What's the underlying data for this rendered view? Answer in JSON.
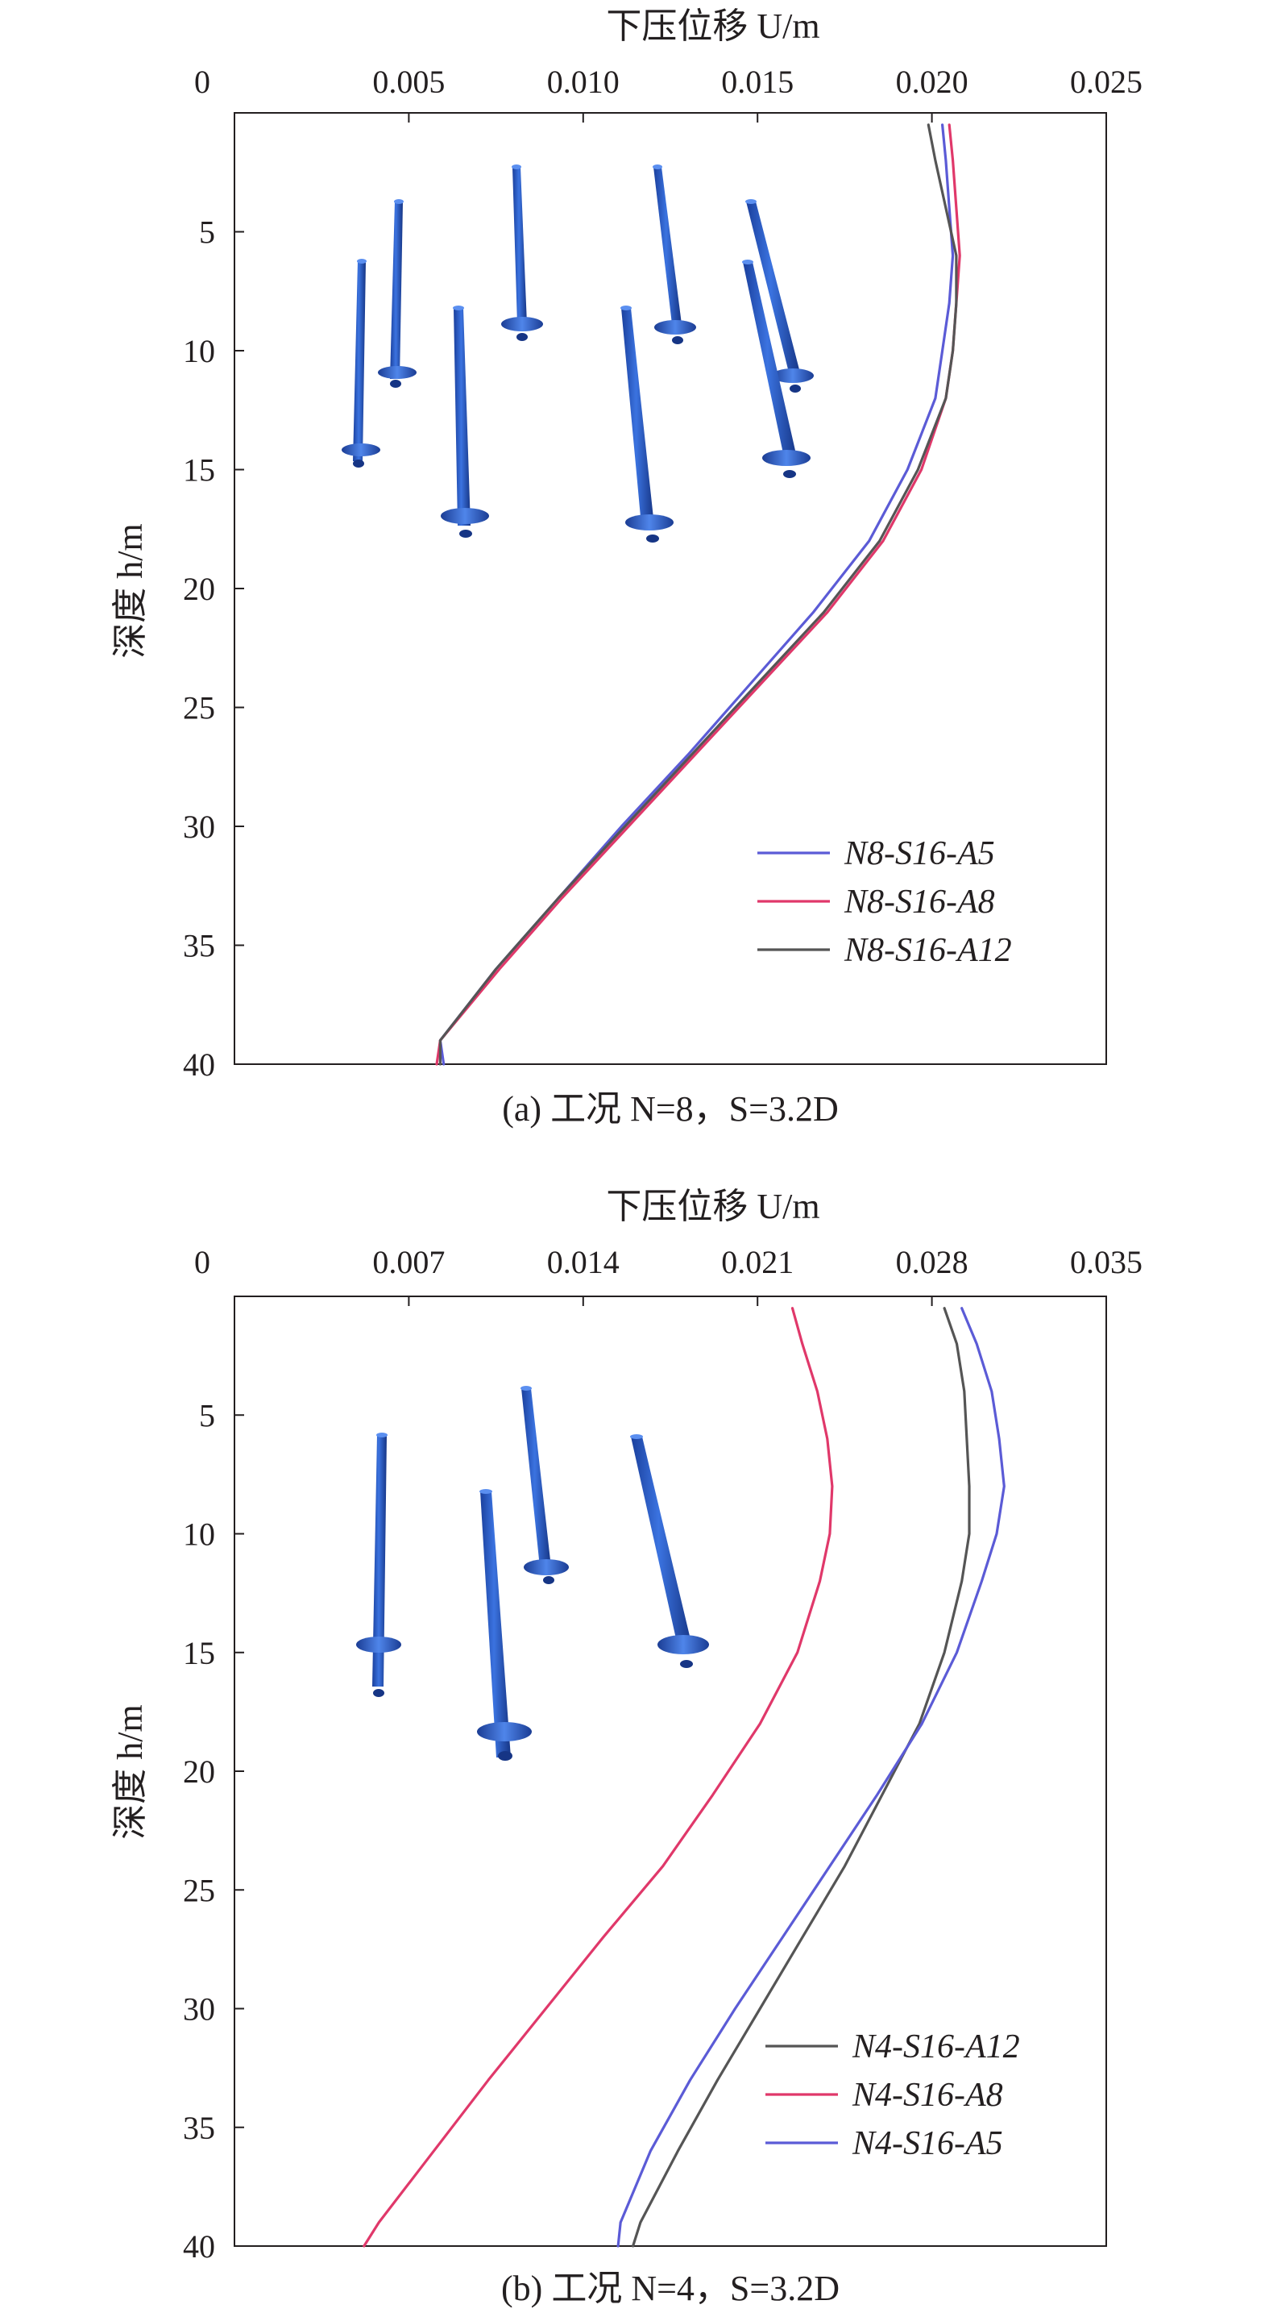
{
  "chart_data": [
    {
      "type": "line",
      "caption_text": "(a) 工况 N=8，S=3.2D",
      "x_axis": {
        "label": "下压位移 U/m",
        "position": "top",
        "range": [
          0,
          0.025
        ],
        "ticks": [
          0,
          0.005,
          0.01,
          0.015,
          0.02,
          0.025
        ],
        "tick_labels": [
          "0",
          "0.005",
          "0.010",
          "0.015",
          "0.020",
          "0.025"
        ]
      },
      "y_axis": {
        "label": "深度 h/m",
        "inverted": true,
        "range": [
          0,
          40
        ],
        "ticks": [
          5,
          10,
          15,
          20,
          25,
          30,
          35,
          40
        ],
        "tick_labels": [
          "5",
          "10",
          "15",
          "20",
          "25",
          "30",
          "35",
          "40"
        ]
      },
      "legend_position": "lower-right",
      "inset": "pile-group-3d-view",
      "series": [
        {
          "name": "N8-S16-A5",
          "color": "#5b5bd6",
          "points": [
            [
              0.0203,
              0.5
            ],
            [
              0.0204,
              2
            ],
            [
              0.0205,
              4
            ],
            [
              0.0206,
              6
            ],
            [
              0.0205,
              8
            ],
            [
              0.0203,
              10
            ],
            [
              0.0201,
              12
            ],
            [
              0.0193,
              15
            ],
            [
              0.0182,
              18
            ],
            [
              0.0166,
              21
            ],
            [
              0.0148,
              24
            ],
            [
              0.013,
              27
            ],
            [
              0.0111,
              30
            ],
            [
              0.0093,
              33
            ],
            [
              0.0075,
              36
            ],
            [
              0.0059,
              39
            ],
            [
              0.006,
              40
            ]
          ]
        },
        {
          "name": "N8-S16-A8",
          "color": "#e0386a",
          "points": [
            [
              0.0205,
              0.5
            ],
            [
              0.0206,
              2
            ],
            [
              0.0207,
              4
            ],
            [
              0.0208,
              6
            ],
            [
              0.0207,
              8
            ],
            [
              0.0206,
              10
            ],
            [
              0.0204,
              12
            ],
            [
              0.0197,
              15
            ],
            [
              0.0186,
              18
            ],
            [
              0.017,
              21
            ],
            [
              0.0151,
              24
            ],
            [
              0.0132,
              27
            ],
            [
              0.0113,
              30
            ],
            [
              0.0094,
              33
            ],
            [
              0.0076,
              36
            ],
            [
              0.0059,
              39
            ],
            [
              0.0058,
              40
            ]
          ]
        },
        {
          "name": "N8-S16-A12",
          "color": "#555555",
          "points": [
            [
              0.0199,
              0.5
            ],
            [
              0.0201,
              2
            ],
            [
              0.0204,
              4
            ],
            [
              0.0207,
              6
            ],
            [
              0.0207,
              8
            ],
            [
              0.0206,
              10
            ],
            [
              0.0204,
              12
            ],
            [
              0.0196,
              15
            ],
            [
              0.0185,
              18
            ],
            [
              0.0169,
              21
            ],
            [
              0.015,
              24
            ],
            [
              0.0131,
              27
            ],
            [
              0.0112,
              30
            ],
            [
              0.0093,
              33
            ],
            [
              0.0075,
              36
            ],
            [
              0.0059,
              39
            ],
            [
              0.0059,
              40
            ]
          ]
        }
      ]
    },
    {
      "type": "line",
      "caption_text": "(b) 工况 N=4，S=3.2D",
      "x_axis": {
        "label": "下压位移 U/m",
        "position": "top",
        "range": [
          0,
          0.035
        ],
        "ticks": [
          0,
          0.007,
          0.014,
          0.021,
          0.028,
          0.035
        ],
        "tick_labels": [
          "0",
          "0.007",
          "0.014",
          "0.021",
          "0.028",
          "0.035"
        ]
      },
      "y_axis": {
        "label": "深度 h/m",
        "inverted": true,
        "range": [
          0,
          40
        ],
        "ticks": [
          5,
          10,
          15,
          20,
          25,
          30,
          35,
          40
        ],
        "tick_labels": [
          "5",
          "10",
          "15",
          "20",
          "25",
          "30",
          "35",
          "40"
        ]
      },
      "legend_position": "lower-right",
      "inset": "pile-group-3d-view",
      "series": [
        {
          "name": "N4-S16-A12",
          "color": "#555555",
          "points": [
            [
              0.0285,
              0.5
            ],
            [
              0.029,
              2
            ],
            [
              0.0293,
              4
            ],
            [
              0.0294,
              6
            ],
            [
              0.0295,
              8
            ],
            [
              0.0295,
              10
            ],
            [
              0.0292,
              12
            ],
            [
              0.0285,
              15
            ],
            [
              0.0275,
              18
            ],
            [
              0.026,
              21
            ],
            [
              0.0245,
              24
            ],
            [
              0.0228,
              27
            ],
            [
              0.0211,
              30
            ],
            [
              0.0194,
              33
            ],
            [
              0.0178,
              36
            ],
            [
              0.0163,
              39
            ],
            [
              0.016,
              40
            ]
          ]
        },
        {
          "name": "N4-S16-A8",
          "color": "#e0386a",
          "points": [
            [
              0.0224,
              0.5
            ],
            [
              0.0228,
              2
            ],
            [
              0.0234,
              4
            ],
            [
              0.0238,
              6
            ],
            [
              0.024,
              8
            ],
            [
              0.0239,
              10
            ],
            [
              0.0235,
              12
            ],
            [
              0.0226,
              15
            ],
            [
              0.0211,
              18
            ],
            [
              0.0192,
              21
            ],
            [
              0.0172,
              24
            ],
            [
              0.0148,
              27
            ],
            [
              0.0125,
              30
            ],
            [
              0.0102,
              33
            ],
            [
              0.008,
              36
            ],
            [
              0.0058,
              39
            ],
            [
              0.0052,
              40
            ]
          ]
        },
        {
          "name": "N4-S16-A5",
          "color": "#5b5bd6",
          "points": [
            [
              0.0292,
              0.5
            ],
            [
              0.0298,
              2
            ],
            [
              0.0304,
              4
            ],
            [
              0.0307,
              6
            ],
            [
              0.0309,
              8
            ],
            [
              0.0306,
              10
            ],
            [
              0.03,
              12
            ],
            [
              0.029,
              15
            ],
            [
              0.0276,
              18
            ],
            [
              0.0258,
              21
            ],
            [
              0.0239,
              24
            ],
            [
              0.022,
              27
            ],
            [
              0.0201,
              30
            ],
            [
              0.0183,
              33
            ],
            [
              0.0167,
              36
            ],
            [
              0.0155,
              39
            ],
            [
              0.0154,
              40
            ]
          ]
        }
      ]
    }
  ]
}
